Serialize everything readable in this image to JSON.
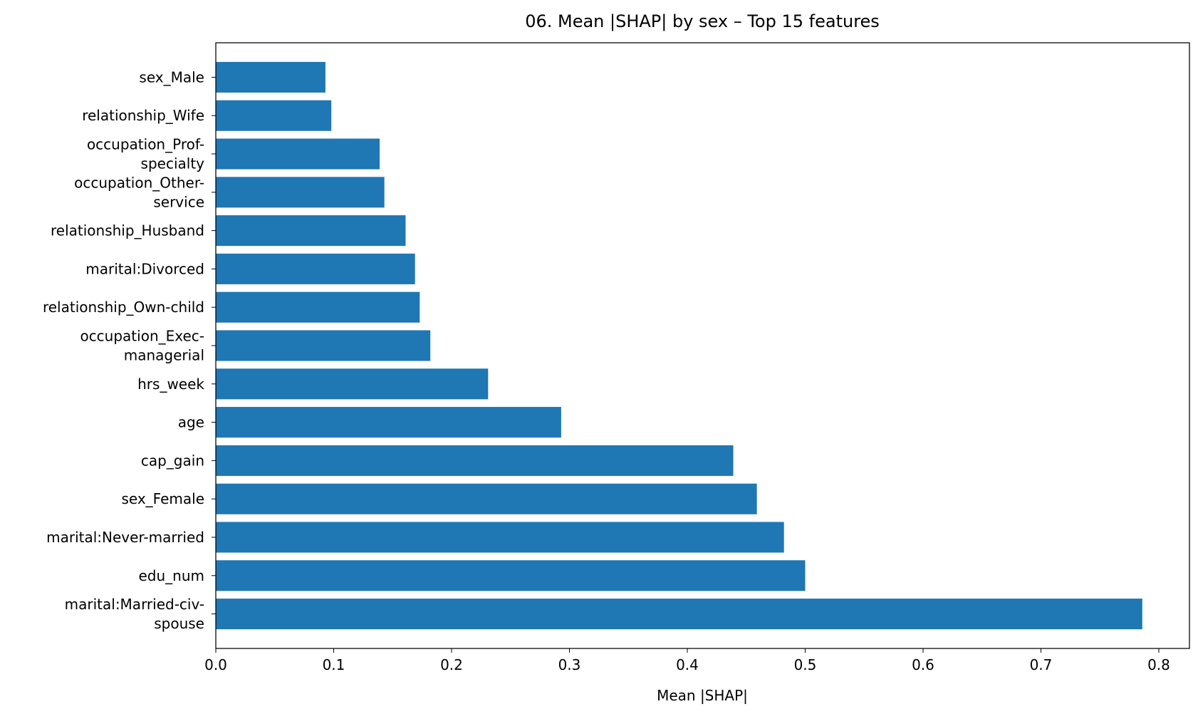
{
  "chart_data": {
    "type": "bar",
    "orientation": "horizontal",
    "title": "06. Mean |SHAP| by sex – Top 15 features",
    "xlabel": "Mean |SHAP|",
    "ylabel": "",
    "xlim": [
      0,
      0.826
    ],
    "xticks": [
      "0.0",
      "0.1",
      "0.2",
      "0.3",
      "0.4",
      "0.5",
      "0.6",
      "0.7",
      "0.8"
    ],
    "grid": false,
    "bar_color": "#1f77b4",
    "categories": [
      "marital:Married-civ-spouse",
      "edu_num",
      "marital:Never-married",
      "sex_Female",
      "cap_gain",
      "age",
      "hrs_week",
      "occupation_Exec-managerial",
      "relationship_Own-child",
      "marital:Divorced",
      "relationship_Husband",
      "occupation_Other-service",
      "occupation_Prof-specialty",
      "relationship_Wife",
      "sex_Male"
    ],
    "category_lines": [
      [
        "marital:Married-civ-",
        "spouse"
      ],
      [
        "edu_num"
      ],
      [
        "marital:Never-married"
      ],
      [
        "sex_Female"
      ],
      [
        "cap_gain"
      ],
      [
        "age"
      ],
      [
        "hrs_week"
      ],
      [
        "occupation_Exec-",
        "managerial"
      ],
      [
        "relationship_Own-child"
      ],
      [
        "marital:Divorced"
      ],
      [
        "relationship_Husband"
      ],
      [
        "occupation_Other-",
        "service"
      ],
      [
        "occupation_Prof-",
        "specialty"
      ],
      [
        "relationship_Wife"
      ],
      [
        "sex_Male"
      ]
    ],
    "values": [
      0.786,
      0.5,
      0.482,
      0.459,
      0.439,
      0.293,
      0.231,
      0.182,
      0.173,
      0.169,
      0.161,
      0.143,
      0.139,
      0.098,
      0.093
    ]
  }
}
